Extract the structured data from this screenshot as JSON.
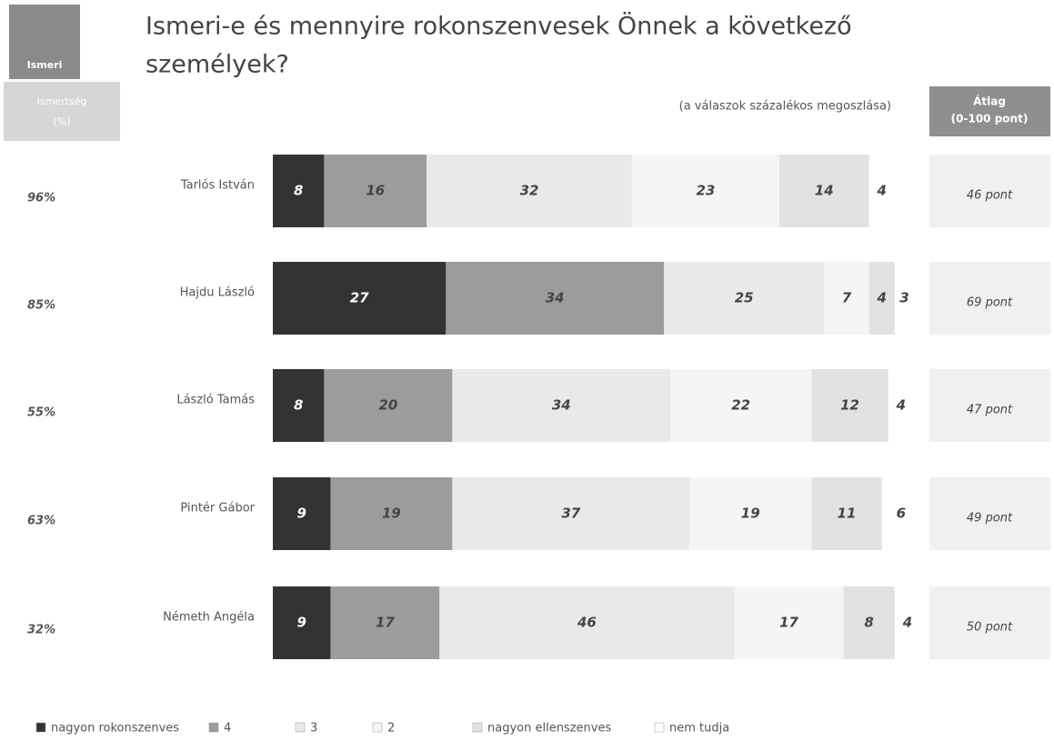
{
  "chart_data": {
    "type": "stacked-bar-horizontal",
    "title": "Ismeri-e és mennyire rokonszenvesek Önnek a következő személyek?",
    "subtitle": "(a válaszok százalékos megoszlása)",
    "badge_left": "Ismeri",
    "badge_awareness": [
      "Ismertség",
      "(%)"
    ],
    "badge_right": [
      "Átlag",
      "(0-100 pont)"
    ],
    "categories": [
      "Tarlós István",
      "Hajdu László",
      "László Tamás",
      "Pintér Gábor",
      "Németh Angéla"
    ],
    "awareness": [
      "96%",
      "85%",
      "55%",
      "63%",
      "32%"
    ],
    "scores": [
      "46 pont",
      "69 pont",
      "47 pont",
      "49 pont",
      "50 pont"
    ],
    "xlim": [
      0,
      100
    ],
    "series": [
      {
        "name": "nagyon rokonszenves",
        "color": "#333333",
        "values": [
          8,
          27,
          8,
          9,
          9
        ]
      },
      {
        "name": "4",
        "color": "#9c9c9c",
        "values": [
          16,
          34,
          20,
          19,
          17
        ]
      },
      {
        "name": "3",
        "color": "#e9e9e9",
        "values": [
          32,
          25,
          34,
          37,
          46
        ]
      },
      {
        "name": "2",
        "color": "#f5f5f5",
        "values": [
          23,
          7,
          22,
          19,
          17
        ]
      },
      {
        "name": "nagyon ellenszenves",
        "color": "#e2e2e2",
        "values": [
          14,
          4,
          12,
          11,
          8
        ]
      },
      {
        "name": "nem tudja",
        "color": "#ffffff",
        "values": [
          4,
          3,
          4,
          6,
          4
        ]
      }
    ]
  }
}
